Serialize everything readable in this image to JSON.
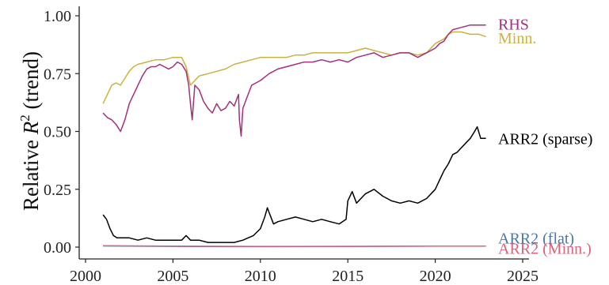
{
  "chart_data": {
    "type": "line",
    "title": "",
    "xlabel": "",
    "ylabel": "Relative R² (trend)",
    "ylabel_parts": {
      "pre": "Relative ",
      "var": "R",
      "sup": "2",
      "post": " (trend)"
    },
    "xlim": [
      2000,
      2025
    ],
    "ylim": [
      0,
      1
    ],
    "xticks": [
      2000,
      2005,
      2010,
      2015,
      2020,
      2025
    ],
    "yticks": [
      "0.00",
      "0.25",
      "0.50",
      "0.75",
      "1.00"
    ],
    "grid": false,
    "legend_placement": "direct labels at right end of lines",
    "series": [
      {
        "name": "RHS",
        "color": "#a3307a",
        "x": [
          2001.0,
          2001.25,
          2001.5,
          2001.75,
          2002.0,
          2002.25,
          2002.5,
          2002.75,
          2003.0,
          2003.25,
          2003.5,
          2003.75,
          2004.0,
          2004.25,
          2004.5,
          2004.75,
          2005.0,
          2005.25,
          2005.5,
          2005.75,
          2005.9,
          2006.0,
          2006.1,
          2006.25,
          2006.5,
          2006.75,
          2007.0,
          2007.25,
          2007.5,
          2007.75,
          2008.0,
          2008.25,
          2008.5,
          2008.75,
          2008.8,
          2008.9,
          2009.0,
          2009.25,
          2009.5,
          2009.75,
          2010.0,
          2010.5,
          2011.0,
          2011.5,
          2012.0,
          2012.5,
          2013.0,
          2013.5,
          2014.0,
          2014.5,
          2015.0,
          2015.5,
          2016.0,
          2016.5,
          2017.0,
          2017.5,
          2018.0,
          2018.5,
          2019.0,
          2019.5,
          2020.0,
          2020.25,
          2020.5,
          2020.75,
          2021.0,
          2021.5,
          2022.0,
          2022.5,
          2022.9
        ],
        "y": [
          0.58,
          0.56,
          0.55,
          0.53,
          0.5,
          0.55,
          0.62,
          0.66,
          0.7,
          0.74,
          0.77,
          0.78,
          0.78,
          0.79,
          0.78,
          0.77,
          0.78,
          0.8,
          0.79,
          0.76,
          0.7,
          0.62,
          0.55,
          0.7,
          0.68,
          0.63,
          0.6,
          0.58,
          0.62,
          0.59,
          0.6,
          0.63,
          0.61,
          0.66,
          0.55,
          0.48,
          0.6,
          0.65,
          0.7,
          0.71,
          0.72,
          0.75,
          0.77,
          0.78,
          0.79,
          0.8,
          0.8,
          0.81,
          0.8,
          0.81,
          0.8,
          0.82,
          0.83,
          0.84,
          0.82,
          0.83,
          0.84,
          0.84,
          0.82,
          0.84,
          0.86,
          0.88,
          0.89,
          0.92,
          0.94,
          0.95,
          0.96,
          0.96,
          0.96
        ]
      },
      {
        "name": "Minn.",
        "color": "#c9b340",
        "x": [
          2001.0,
          2001.25,
          2001.5,
          2001.75,
          2002.0,
          2002.25,
          2002.5,
          2002.75,
          2003.0,
          2003.5,
          2004.0,
          2004.5,
          2005.0,
          2005.5,
          2005.75,
          2006.0,
          2006.25,
          2006.5,
          2007.0,
          2007.5,
          2008.0,
          2008.5,
          2009.0,
          2009.5,
          2010.0,
          2010.5,
          2011.0,
          2011.5,
          2012.0,
          2012.5,
          2013.0,
          2013.5,
          2014.0,
          2014.5,
          2015.0,
          2015.5,
          2016.0,
          2016.5,
          2017.0,
          2017.5,
          2018.0,
          2018.5,
          2019.0,
          2019.5,
          2020.0,
          2020.25,
          2020.5,
          2020.75,
          2021.0,
          2021.5,
          2022.0,
          2022.5,
          2022.9
        ],
        "y": [
          0.62,
          0.66,
          0.7,
          0.71,
          0.7,
          0.73,
          0.76,
          0.78,
          0.79,
          0.8,
          0.81,
          0.81,
          0.82,
          0.82,
          0.78,
          0.7,
          0.72,
          0.74,
          0.75,
          0.76,
          0.77,
          0.79,
          0.8,
          0.81,
          0.82,
          0.82,
          0.82,
          0.82,
          0.83,
          0.83,
          0.84,
          0.84,
          0.84,
          0.84,
          0.84,
          0.85,
          0.86,
          0.85,
          0.84,
          0.83,
          0.84,
          0.84,
          0.83,
          0.84,
          0.88,
          0.89,
          0.9,
          0.92,
          0.93,
          0.93,
          0.92,
          0.92,
          0.91
        ]
      },
      {
        "name": "ARR2 (sparse)",
        "color": "#000000",
        "x": [
          2001.0,
          2001.2,
          2001.4,
          2001.6,
          2001.8,
          2002.0,
          2002.5,
          2003.0,
          2003.5,
          2004.0,
          2004.5,
          2005.0,
          2005.5,
          2005.75,
          2006.0,
          2006.5,
          2007.0,
          2007.5,
          2008.0,
          2008.5,
          2009.0,
          2009.3,
          2009.6,
          2010.0,
          2010.25,
          2010.4,
          2010.5,
          2010.75,
          2011.0,
          2011.5,
          2012.0,
          2012.5,
          2013.0,
          2013.5,
          2014.0,
          2014.5,
          2014.9,
          2015.0,
          2015.25,
          2015.5,
          2016.0,
          2016.5,
          2017.0,
          2017.5,
          2018.0,
          2018.5,
          2019.0,
          2019.5,
          2020.0,
          2020.25,
          2020.5,
          2020.75,
          2021.0,
          2021.25,
          2021.5,
          2021.75,
          2022.0,
          2022.25,
          2022.4,
          2022.6,
          2022.9
        ],
        "y": [
          0.14,
          0.12,
          0.08,
          0.05,
          0.04,
          0.04,
          0.04,
          0.03,
          0.04,
          0.03,
          0.03,
          0.03,
          0.03,
          0.05,
          0.03,
          0.03,
          0.02,
          0.02,
          0.02,
          0.02,
          0.03,
          0.04,
          0.05,
          0.08,
          0.13,
          0.17,
          0.15,
          0.1,
          0.11,
          0.12,
          0.13,
          0.12,
          0.11,
          0.12,
          0.11,
          0.1,
          0.12,
          0.2,
          0.24,
          0.19,
          0.23,
          0.25,
          0.22,
          0.2,
          0.19,
          0.2,
          0.19,
          0.21,
          0.25,
          0.29,
          0.33,
          0.36,
          0.4,
          0.41,
          0.43,
          0.45,
          0.47,
          0.5,
          0.52,
          0.47,
          0.47
        ]
      },
      {
        "name": "ARR2 (flat)",
        "color": "#4a78a8",
        "x": [
          2001.0,
          2005.0,
          2010.0,
          2015.0,
          2020.0,
          2022.9
        ],
        "y": [
          0.005,
          0.003,
          0.002,
          0.003,
          0.004,
          0.004
        ]
      },
      {
        "name": "ARR2 (Minn.)",
        "color": "#e0607a",
        "x": [
          2001.0,
          2005.0,
          2010.0,
          2015.0,
          2020.0,
          2022.9
        ],
        "y": [
          0.006,
          0.004,
          0.003,
          0.003,
          0.004,
          0.004
        ]
      }
    ],
    "direct_labels": [
      {
        "text": "RHS",
        "color": "#a3307a",
        "y": 0.965
      },
      {
        "text": "Minn.",
        "color": "#c9b340",
        "y": 0.905
      },
      {
        "text": "ARR2 (sparse)",
        "color": "#000000",
        "y": 0.47
      },
      {
        "text": "ARR2 (flat)",
        "color": "#4a78a8",
        "y": 0.04
      },
      {
        "text": "ARR2 (Minn.)",
        "color": "#e0607a",
        "y": -0.005
      }
    ]
  }
}
